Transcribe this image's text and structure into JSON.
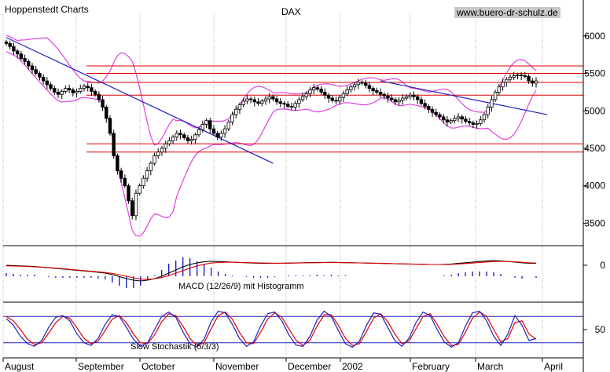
{
  "source": "Hoppenstedt Charts",
  "website": "www.buero-dr-schulz.de",
  "chart_data": [
    {
      "type": "candlestick",
      "title": "DAX",
      "x_labels": [
        "August",
        "September",
        "October",
        "November",
        "December",
        "2002",
        "February",
        "March",
        "April"
      ],
      "ylim": [
        3200,
        6250
      ],
      "yticks": [
        3500,
        4000,
        4500,
        5000,
        5500,
        6000
      ],
      "close": [
        5900,
        5860,
        5800,
        5760,
        5700,
        5660,
        5600,
        5550,
        5500,
        5450,
        5400,
        5350,
        5300,
        5250,
        5220,
        5260,
        5300,
        5280,
        5240,
        5260,
        5300,
        5330,
        5310,
        5260,
        5220,
        5150,
        5050,
        4900,
        4700,
        4400,
        4200,
        4100,
        4000,
        3800,
        3600,
        3900,
        4000,
        4100,
        4200,
        4300,
        4400,
        4450,
        4500,
        4560,
        4600,
        4650,
        4700,
        4680,
        4640,
        4600,
        4620,
        4680,
        4750,
        4820,
        4870,
        4760,
        4700,
        4650,
        4700,
        4760,
        4850,
        4950,
        5020,
        5080,
        5130,
        5160,
        5150,
        5120,
        5100,
        5130,
        5160,
        5190,
        5160,
        5120,
        5100,
        5090,
        5060,
        5050,
        5100,
        5150,
        5190,
        5230,
        5280,
        5310,
        5290,
        5250,
        5210,
        5170,
        5140,
        5130,
        5180,
        5230,
        5280,
        5320,
        5350,
        5380,
        5370,
        5340,
        5300,
        5270,
        5250,
        5220,
        5200,
        5170,
        5150,
        5120,
        5140,
        5170,
        5190,
        5210,
        5190,
        5150,
        5100,
        5060,
        5020,
        4980,
        4950,
        4920,
        4880,
        4850,
        4870,
        4900,
        4920,
        4890,
        4860,
        4840,
        4820,
        4830,
        4880,
        4950,
        5050,
        5150,
        5250,
        5320,
        5380,
        5420,
        5450,
        5470,
        5480,
        5470,
        5460,
        5400,
        5370,
        5400
      ],
      "trendlines": [
        {
          "from": [
            0,
            5980
          ],
          "to": [
            72,
            4300
          ]
        },
        {
          "from": [
            101,
            5400
          ],
          "to": [
            146,
            4950
          ]
        }
      ],
      "horizontal_levels": [
        5600,
        5500,
        5380,
        5210,
        4560,
        4450
      ],
      "indicators": [
        "Bollinger Bands"
      ]
    },
    {
      "type": "line",
      "title": "MACD (12/26/9) mit Histogramm",
      "yticks": [
        0
      ],
      "macd": [
        0,
        -2,
        -4,
        -6,
        -8,
        -12,
        -16,
        -20,
        -24,
        -28,
        -32,
        -36,
        -40,
        -45,
        -50,
        -60,
        -72,
        -85,
        -95,
        -100,
        -95,
        -85,
        -70,
        -50,
        -30,
        -10,
        5,
        15,
        22,
        25,
        24,
        22,
        20,
        18,
        16,
        14,
        13,
        12,
        12,
        13,
        14,
        15,
        16,
        17,
        18,
        18,
        19,
        18,
        17,
        16,
        15,
        14,
        13,
        12,
        11,
        10,
        9,
        8,
        7,
        6,
        5,
        5,
        6,
        8,
        12,
        16,
        20,
        24,
        27,
        29,
        28,
        24,
        20,
        16,
        13,
        12
      ],
      "signal": [
        -4,
        -5,
        -6,
        -8,
        -10,
        -12,
        -15,
        -18,
        -22,
        -26,
        -30,
        -34,
        -38,
        -42,
        -46,
        -52,
        -60,
        -70,
        -80,
        -88,
        -90,
        -86,
        -78,
        -66,
        -50,
        -34,
        -18,
        -4,
        6,
        14,
        18,
        19,
        19,
        18,
        17,
        16,
        15,
        14,
        13,
        13,
        13,
        14,
        15,
        16,
        16,
        17,
        17,
        17,
        16,
        16,
        15,
        14,
        13,
        12,
        11,
        10,
        9,
        8,
        7,
        6,
        5,
        5,
        5,
        6,
        8,
        11,
        14,
        18,
        21,
        24,
        25,
        24,
        22,
        19,
        16,
        14
      ],
      "histogram": [
        4,
        3,
        2,
        2,
        2,
        0,
        -1,
        -2,
        -2,
        -2,
        -2,
        -2,
        -2,
        -3,
        -4,
        -8,
        -12,
        -15,
        -15,
        -12,
        -5,
        1,
        8,
        16,
        20,
        24,
        23,
        19,
        16,
        11,
        6,
        3,
        1,
        0,
        -1,
        -2,
        -2,
        -2,
        -1,
        0,
        1,
        1,
        1,
        1,
        2,
        1,
        2,
        1,
        1,
        0,
        0,
        0,
        0,
        0,
        0,
        0,
        0,
        0,
        0,
        0,
        0,
        0,
        1,
        2,
        4,
        5,
        6,
        6,
        6,
        5,
        3,
        0,
        -2,
        -3,
        0,
        -2
      ]
    },
    {
      "type": "line",
      "title": "Slow Stochastik (5/3/3)",
      "yticks": [
        50
      ],
      "levels": [
        80,
        20
      ],
      "k": [
        75,
        60,
        35,
        18,
        12,
        25,
        55,
        78,
        82,
        70,
        40,
        20,
        14,
        30,
        62,
        84,
        80,
        55,
        28,
        12,
        20,
        50,
        80,
        90,
        78,
        45,
        18,
        10,
        28,
        68,
        92,
        88,
        62,
        30,
        12,
        22,
        58,
        86,
        90,
        70,
        38,
        15,
        12,
        35,
        72,
        92,
        80,
        48,
        18,
        10,
        24,
        60,
        88,
        85,
        55,
        25,
        12,
        30,
        66,
        90,
        82,
        50,
        22,
        10,
        20,
        58,
        88,
        92,
        70,
        35,
        14,
        40,
        82,
        60,
        25,
        30
      ],
      "d": [
        80,
        70,
        50,
        28,
        16,
        20,
        42,
        66,
        80,
        76,
        54,
        30,
        18,
        24,
        48,
        74,
        82,
        66,
        40,
        20,
        18,
        38,
        68,
        86,
        82,
        58,
        30,
        14,
        20,
        52,
        82,
        90,
        74,
        44,
        20,
        18,
        44,
        74,
        88,
        78,
        52,
        26,
        14,
        26,
        58,
        84,
        84,
        60,
        30,
        14,
        18,
        46,
        76,
        86,
        68,
        40,
        18,
        24,
        52,
        80,
        86,
        62,
        34,
        14,
        16,
        44,
        76,
        90,
        80,
        50,
        22,
        30,
        66,
        70,
        40,
        28
      ]
    }
  ],
  "colors": {
    "bollinger": "#e040e0",
    "trendline": "#2020c0",
    "level": "#e00000",
    "macd": "#000000",
    "signal": "#e00000",
    "hist": "#2020c0",
    "stoch_k": "#2020c0",
    "stoch_d": "#e00000",
    "grid": "#808080"
  }
}
